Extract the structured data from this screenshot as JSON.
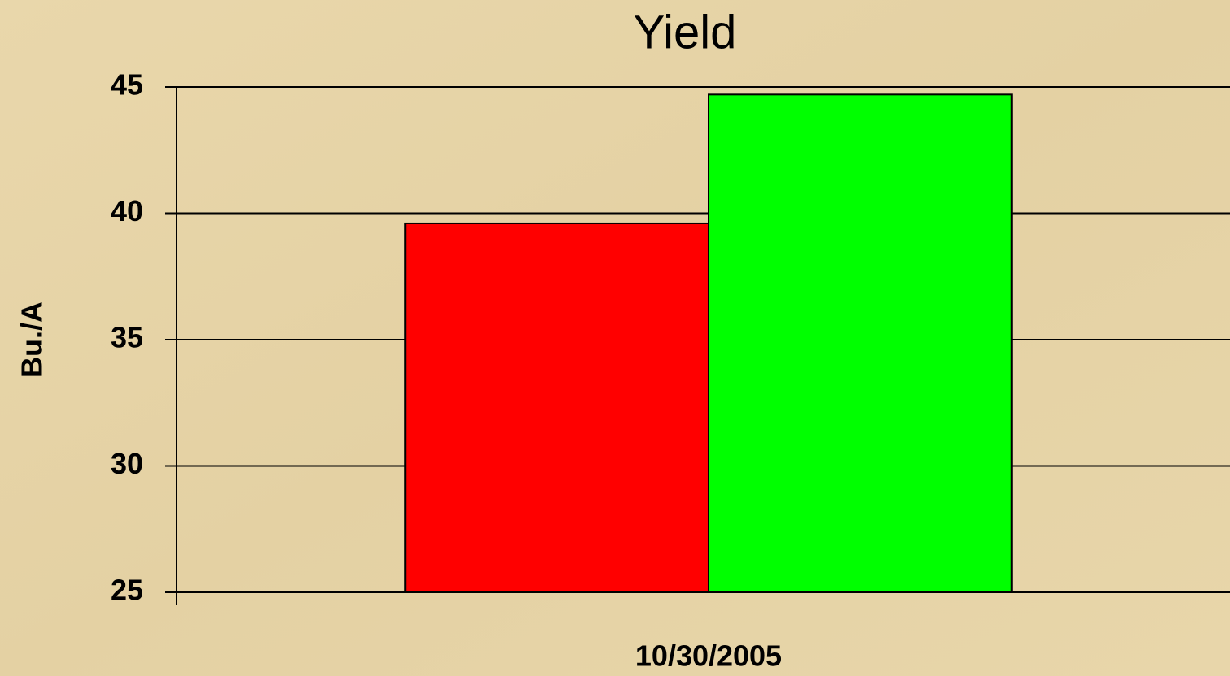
{
  "chart_data": {
    "type": "bar",
    "title": "Yield",
    "y_label": "Bu./A",
    "categories": [
      "10/30/2005"
    ],
    "series": [
      {
        "color": "#ff0000",
        "values": [
          39.6
        ]
      },
      {
        "color": "#00ff00",
        "values": [
          44.7
        ]
      }
    ],
    "ylim": [
      25,
      45
    ],
    "yticks": [
      25,
      30,
      35,
      40,
      45
    ],
    "grid": true
  }
}
